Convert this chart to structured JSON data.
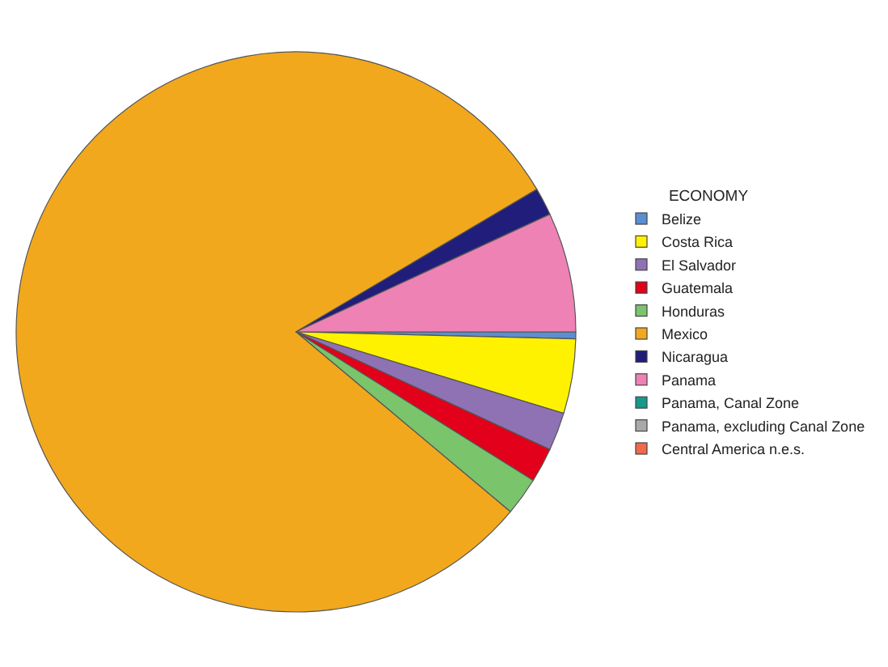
{
  "chart_data": {
    "type": "pie",
    "legend_title": "ECONOMY",
    "legend": "right",
    "categories": [
      "Belize",
      "Costa Rica",
      "El Salvador",
      "Guatemala",
      "Honduras",
      "Mexico",
      "Nicaragua",
      "Panama",
      "Panama, Canal Zone",
      "Panama, excluding Canal Zone",
      "Central America n.e.s."
    ],
    "values": [
      0.4,
      4.3,
      2.2,
      2.0,
      2.2,
      80.4,
      1.6,
      6.9,
      0,
      0,
      0
    ],
    "colors": [
      "#5b8fd1",
      "#fff200",
      "#8e72b4",
      "#e2001a",
      "#7ac46c",
      "#f2a81d",
      "#201e7a",
      "#ee82b4",
      "#14998a",
      "#a9a9a9",
      "#ef6a4c"
    ]
  }
}
